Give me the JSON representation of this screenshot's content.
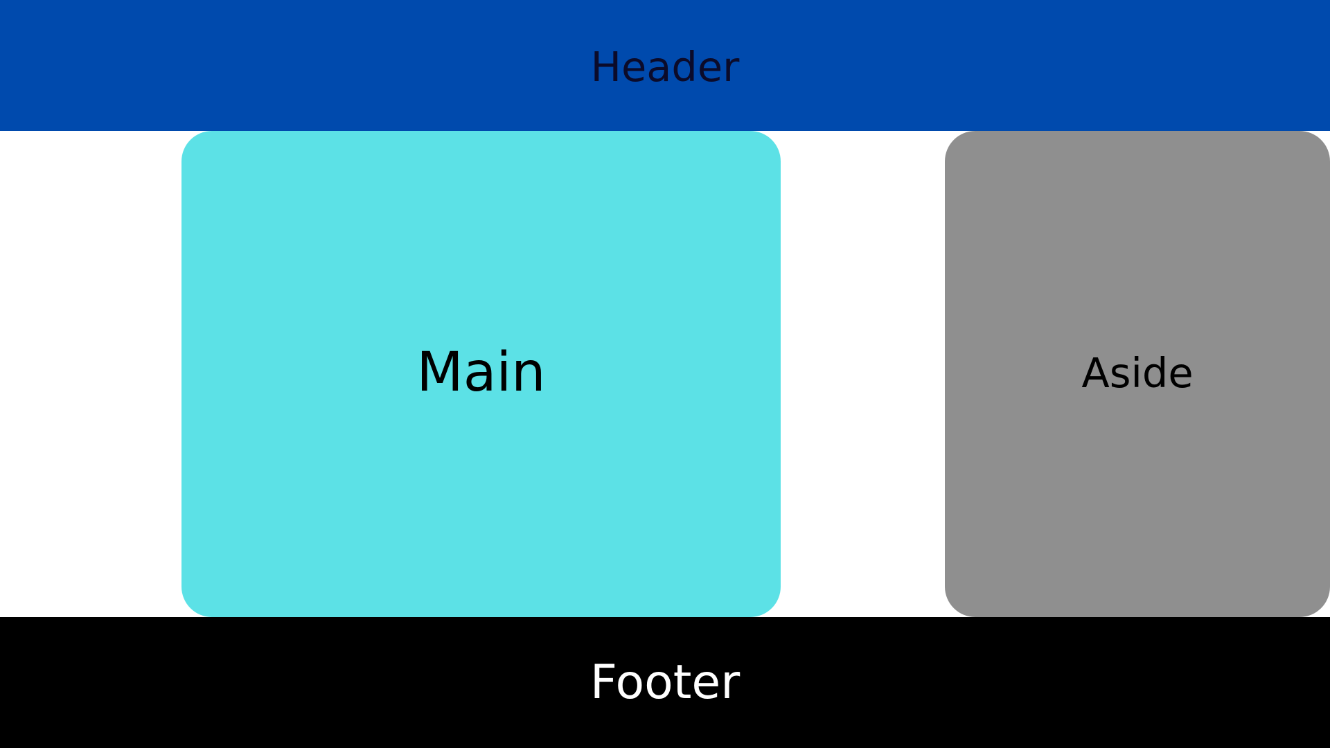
{
  "header": {
    "label": "Header"
  },
  "main": {
    "label": "Main"
  },
  "aside": {
    "label": "Aside"
  },
  "footer": {
    "label": "Footer"
  },
  "colors": {
    "header_background": "#004aad",
    "main_background": "#5ce1e6",
    "aside_background": "#8f8f8f",
    "footer_background": "#000000",
    "page_background": "#ffffff",
    "header_text": "#0b0b2a",
    "main_text": "#000000",
    "aside_text": "#000000",
    "footer_text": "#ffffff"
  }
}
